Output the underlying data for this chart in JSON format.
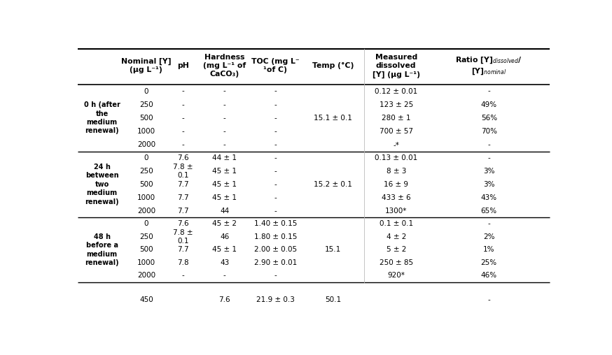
{
  "headers": [
    "Nominal [Y]\n(µg L⁻¹)",
    "pH",
    "Hardness\n(mg L⁻¹ of\nCaCO₃)",
    "TOC (mg L⁻\n¹of C)",
    "Temp (°C)",
    "Measured\ndissolved\n[Y] (µg L⁻¹)",
    "Ratio [Y]$_{dissolved}$/\n[Y]$_{nominal}$"
  ],
  "group_labels": [
    "0 h (after\nthe\nmedium\nrenewal)",
    "24 h\nbetween\ntwo\nmedium\nrenewal)",
    "48 h\nbefore a\nmedium\nrenewal)"
  ],
  "rows": [
    [
      1,
      "0",
      "-",
      "-",
      "-",
      "",
      "0.12 ± 0.01",
      "-"
    ],
    [
      1,
      "250",
      "-",
      "-",
      "-",
      "",
      "123 ± 25",
      "49%"
    ],
    [
      1,
      "500",
      "-",
      "-",
      "-",
      "15.1 ± 0.1",
      "280 ± 1",
      "56%"
    ],
    [
      1,
      "1000",
      "-",
      "-",
      "-",
      "",
      "700 ± 57",
      "70%"
    ],
    [
      1,
      "2000",
      "-",
      "-",
      "-",
      "",
      "-*",
      "-"
    ],
    [
      2,
      "0",
      "7.6",
      "44 ± 1",
      "-",
      "",
      "0.13 ± 0.01",
      "-"
    ],
    [
      2,
      "250",
      "7.8 ±\n0.1",
      "45 ± 1",
      "-",
      "",
      "8 ± 3",
      "3%"
    ],
    [
      2,
      "500",
      "7.7",
      "45 ± 1",
      "-",
      "15.2 ± 0.1",
      "16 ± 9",
      "3%"
    ],
    [
      2,
      "1000",
      "7.7",
      "45 ± 1",
      "-",
      "",
      "433 ± 6",
      "43%"
    ],
    [
      2,
      "2000",
      "7.7",
      "44",
      "-",
      "",
      "1300*",
      "65%"
    ],
    [
      3,
      "0",
      "7.6",
      "45 ± 2",
      "1.40 ± 0.15",
      "",
      "0.1 ± 0.1",
      "-"
    ],
    [
      3,
      "250",
      "7.8 ±\n0.1",
      "46",
      "1.80 ± 0.15",
      "",
      "4 ± 2",
      "2%"
    ],
    [
      3,
      "500",
      "7.7",
      "45 ± 1",
      "2.00 ± 0.05",
      "15.1",
      "5 ± 2",
      "1%"
    ],
    [
      3,
      "1000",
      "7.8",
      "43",
      "2.90 ± 0.01",
      "",
      "250 ± 85",
      "25%"
    ],
    [
      3,
      "2000",
      "-",
      "-",
      "-",
      "",
      "920*",
      "46%"
    ]
  ],
  "footer": [
    "",
    "450",
    "",
    "7.6",
    "21.9 ± 0.3",
    "50.1",
    "",
    "-"
  ],
  "temp_merged": {
    "1": "15.1 ± 0.1",
    "2": "15.2 ± 0.1",
    "3": "15.1"
  },
  "bg": "#ffffff",
  "fg": "#000000"
}
